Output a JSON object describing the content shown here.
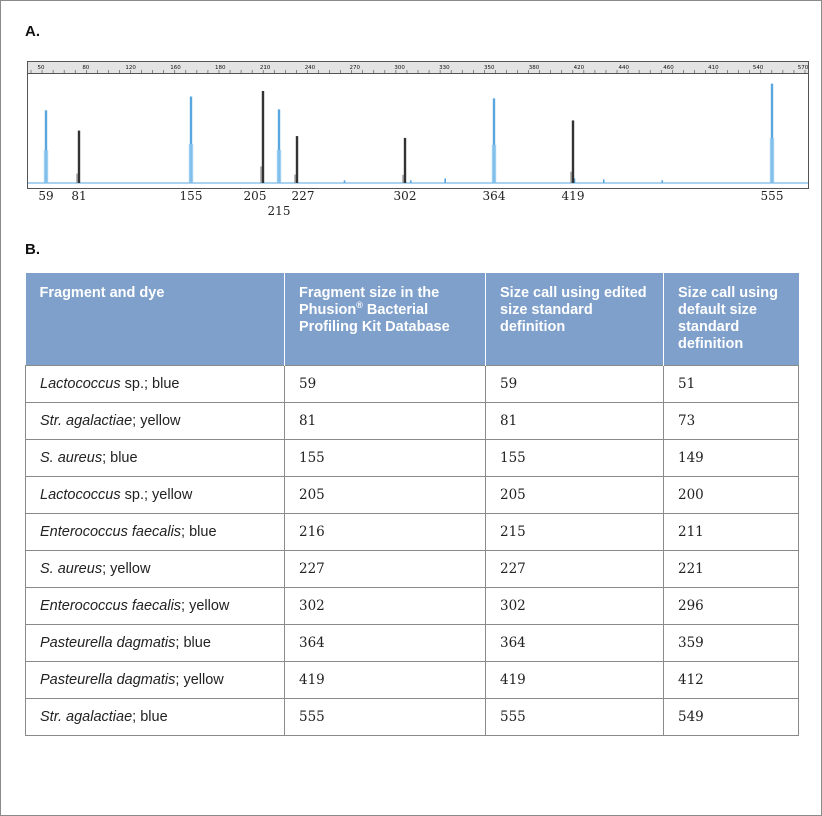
{
  "section_a": {
    "label": "A."
  },
  "section_b": {
    "label": "B."
  },
  "electropherogram": {
    "scale_labels": [
      "50",
      "80",
      "120",
      "160",
      "180",
      "210",
      "240",
      "270",
      "300",
      "330",
      "350",
      "380",
      "420",
      "440",
      "460",
      "410",
      "540",
      "570"
    ],
    "peak_labels": [
      {
        "text": "59"
      },
      {
        "text": "81"
      },
      {
        "text": "155"
      },
      {
        "text": "205"
      },
      {
        "text": "215"
      },
      {
        "text": "227"
      },
      {
        "text": "302"
      },
      {
        "text": "364"
      },
      {
        "text": "419"
      },
      {
        "text": "555"
      }
    ],
    "peaks": [
      {
        "dye": "blue",
        "position": 59,
        "height": 0.79
      },
      {
        "dye": "yellow",
        "position": 81,
        "height": 0.57
      },
      {
        "dye": "blue",
        "position": 155,
        "height": 0.94
      },
      {
        "dye": "yellow",
        "position": 205,
        "height": 1.0
      },
      {
        "dye": "blue",
        "position": 215,
        "height": 0.8
      },
      {
        "dye": "yellow",
        "position": 227,
        "height": 0.51
      },
      {
        "dye": "yellow",
        "position": 302,
        "height": 0.49
      },
      {
        "dye": "blue",
        "position": 364,
        "height": 0.92
      },
      {
        "dye": "yellow",
        "position": 419,
        "height": 0.68
      },
      {
        "dye": "blue",
        "position": 555,
        "height": 1.08
      }
    ],
    "colors": {
      "blue": "#5aa7e0",
      "yellow": "#333333"
    }
  },
  "table": {
    "headers": [
      "Fragment and dye",
      "Fragment size in the Phusion",
      "Size call using edited size standard definition",
      "Size call using default size standard definition"
    ],
    "header_1_sup": "®",
    "header_1_rest": "Bacterial Profiling Kit Database",
    "rows": [
      {
        "species": "Lactococcus",
        "rest": " sp.; blue",
        "fragment": "59",
        "edited": "59",
        "default": "51"
      },
      {
        "species": "Str. agalactiae",
        "rest": "; yellow",
        "fragment": "81",
        "edited": "81",
        "default": "73"
      },
      {
        "species": "S. aureus",
        "rest": "; blue",
        "fragment": "155",
        "edited": "155",
        "default": "149"
      },
      {
        "species": "Lactococcus",
        "rest": " sp.; yellow",
        "fragment": "205",
        "edited": "205",
        "default": "200"
      },
      {
        "species": "Enterococcus faecalis",
        "rest": "; blue",
        "fragment": "216",
        "edited": "215",
        "default": "211"
      },
      {
        "species": "S. aureus",
        "rest": "; yellow",
        "fragment": "227",
        "edited": "227",
        "default": "221"
      },
      {
        "species": "Enterococcus faecalis",
        "rest": "; yellow",
        "fragment": "302",
        "edited": "302",
        "default": "296"
      },
      {
        "species": "Pasteurella dagmatis",
        "rest": "; blue",
        "fragment": "364",
        "edited": "364",
        "default": "359"
      },
      {
        "species": "Pasteurella dagmatis",
        "rest": "; yellow",
        "fragment": "419",
        "edited": "419",
        "default": "412"
      },
      {
        "species": "Str. agalactiae",
        "rest": "; blue",
        "fragment": "555",
        "edited": "555",
        "default": "549"
      }
    ]
  }
}
